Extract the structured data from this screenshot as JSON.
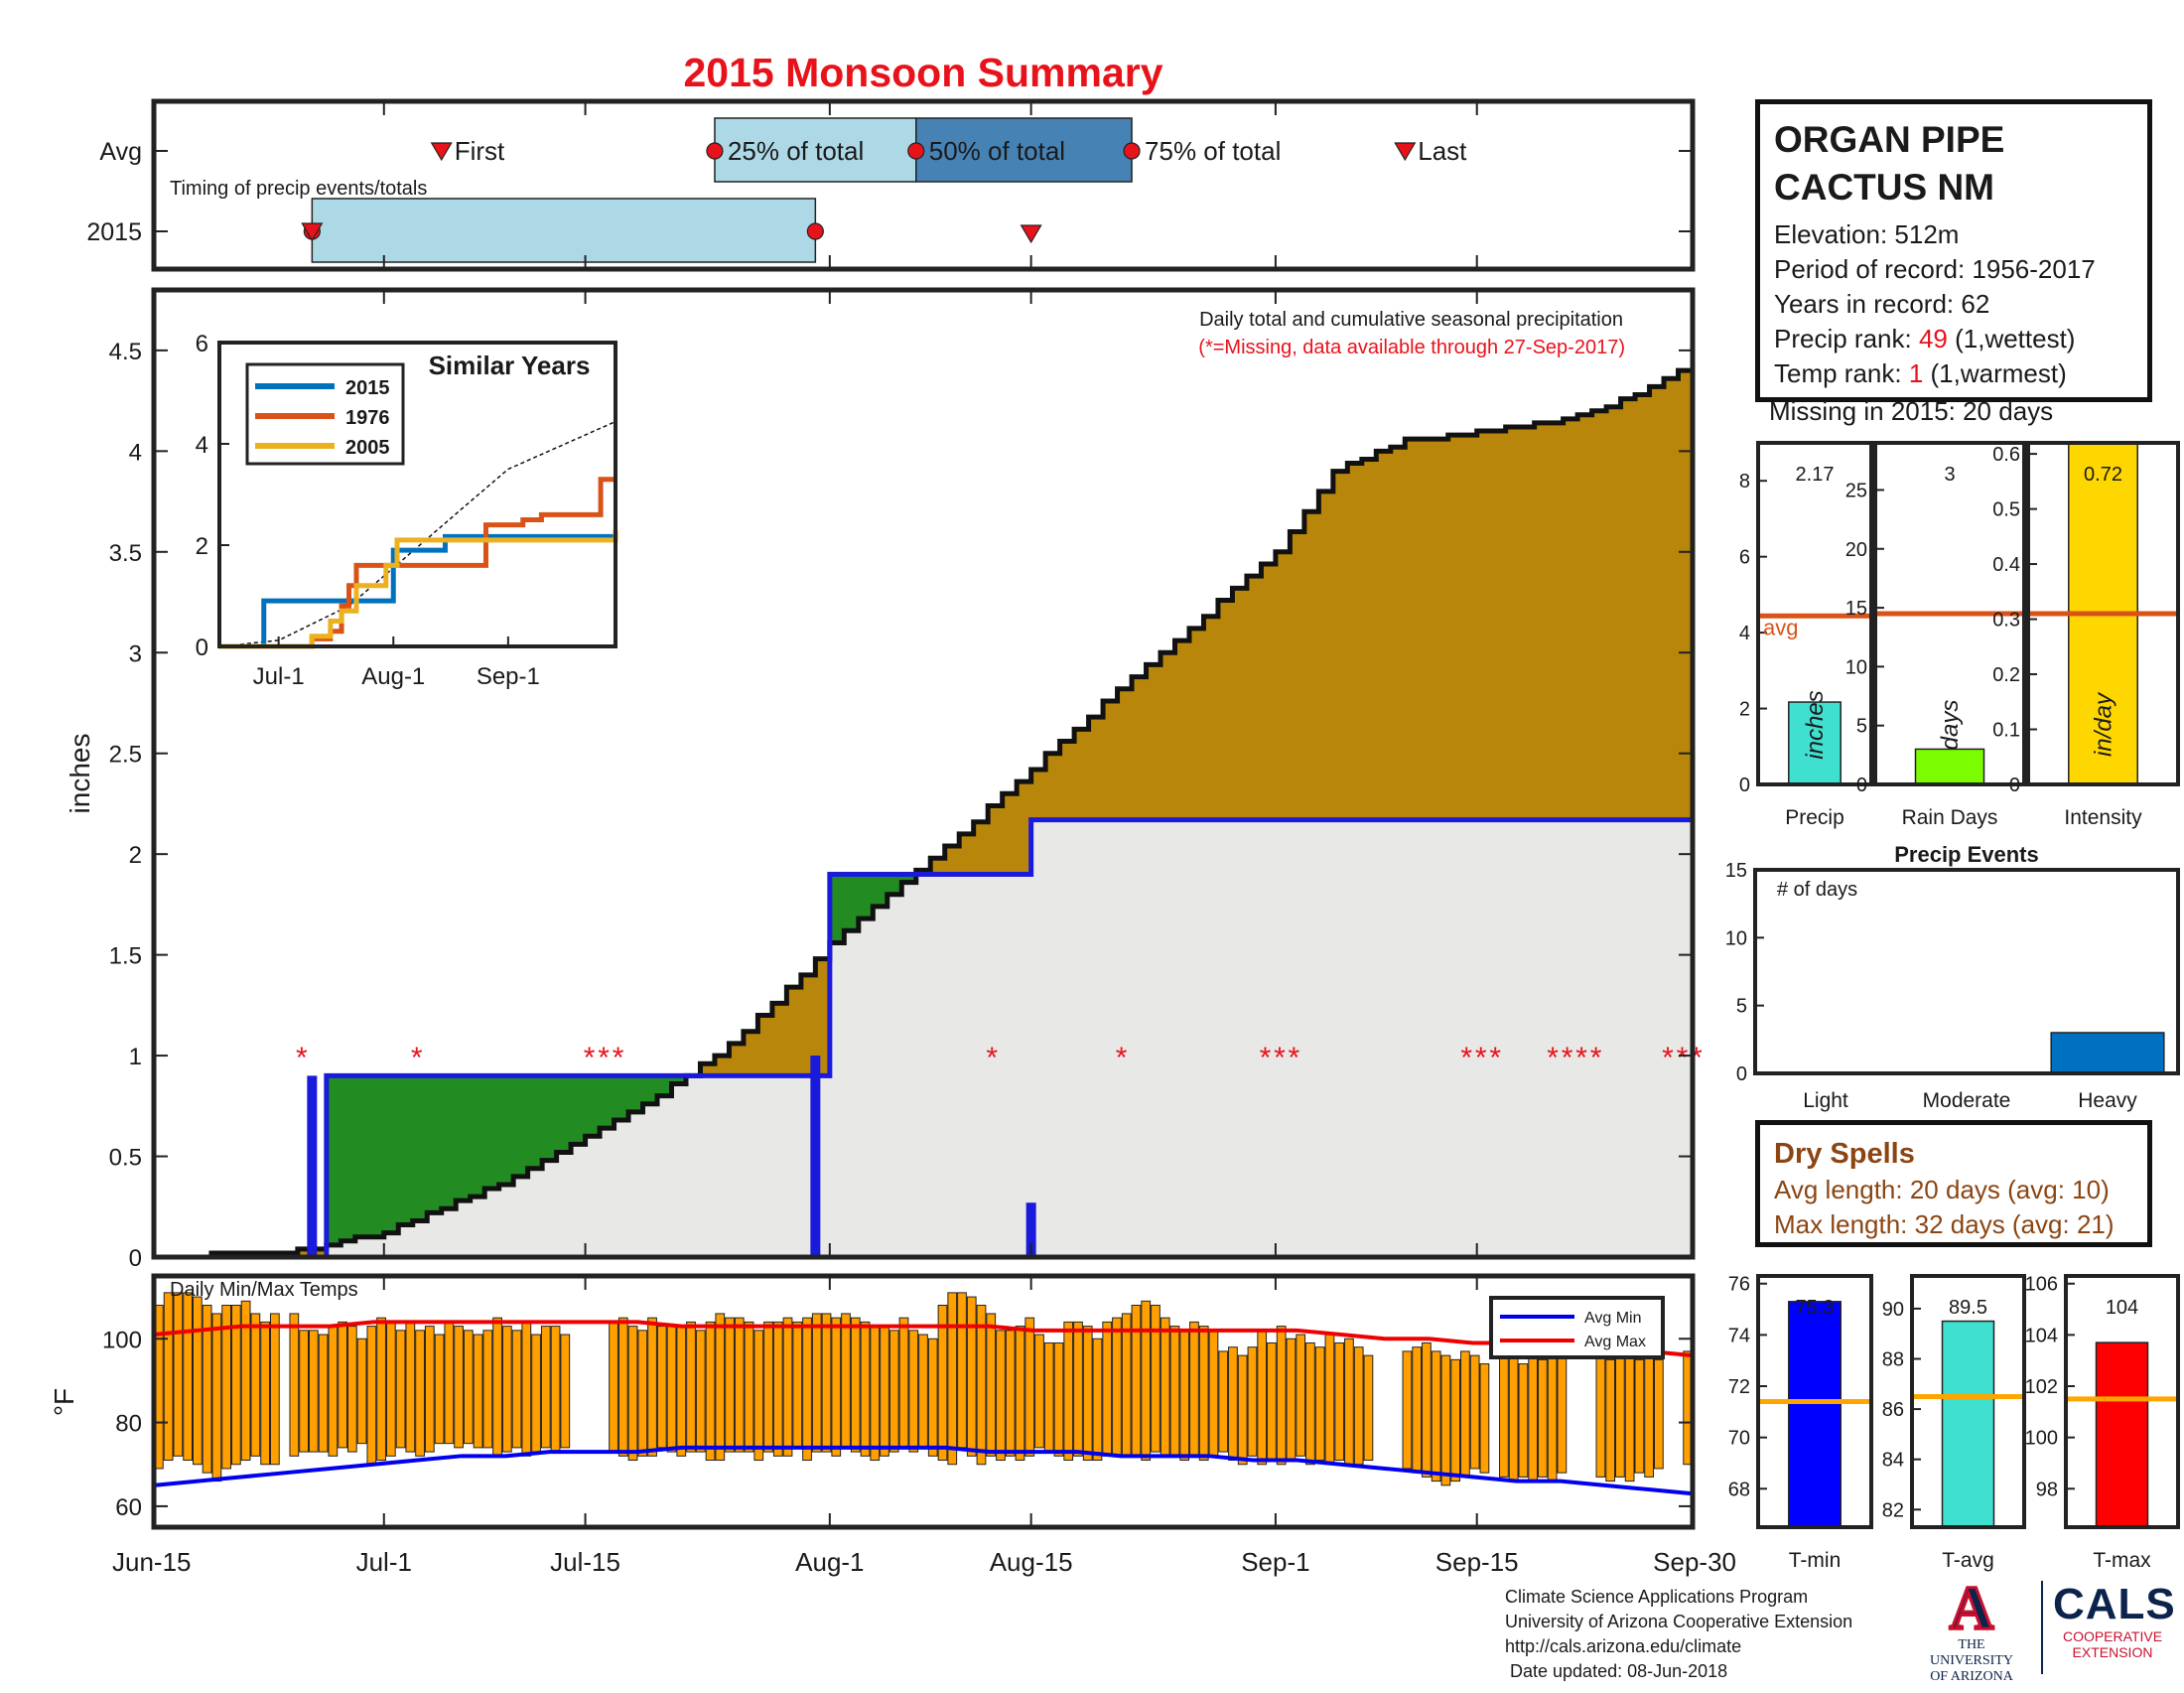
{
  "title": "2015 Monsoon Summary",
  "station": {
    "name_line1": "ORGAN PIPE",
    "name_line2": "CACTUS NM",
    "elevation": "Elevation: 512m",
    "period": "Period of record: 1956-2017",
    "years": "Years in record: 62",
    "precip_rank_label": "Precip rank: ",
    "precip_rank_value": "49",
    "precip_rank_note": " (1,wettest)",
    "temp_rank_label": "Temp rank: ",
    "temp_rank_value": "1",
    "temp_rank_note": " (1,warmest)",
    "missing": "Missing in 2015: 20 days"
  },
  "dry_spells": {
    "title": "Dry Spells",
    "avg": "Avg length: 20 days (avg: 10)",
    "max": "Max length: 32 days (avg: 21)"
  },
  "credits": {
    "line1": "Climate Science Applications Program",
    "line2": "University of Arizona Cooperative Extension",
    "line3": "http://cals.arizona.edu/climate",
    "line4": " Date updated: 08-Jun-2018"
  },
  "logos": {
    "ua_letter": "A",
    "ua_line1": "THE UNIVERSITY",
    "ua_line2": "OF ARIZONA",
    "cals": "CALS",
    "cals_sub1": "COOPERATIVE",
    "cals_sub2": "EXTENSION"
  },
  "colors": {
    "red": "#e8121b",
    "blue": "#1a1adc",
    "brown": "#b8860b",
    "green": "#228b22",
    "gray": "#e8e8e6",
    "orange": "#ff9f00",
    "light_blue": "#add8e6",
    "steel_blue": "#4682b4"
  },
  "chart_data": [
    {
      "id": "timing",
      "type": "timing",
      "title": "Timing of precip events/totals",
      "rows": [
        "Avg",
        "2015"
      ],
      "avg": {
        "first": "2015-07-05",
        "p25": "2015-07-24",
        "p50": "2015-08-07",
        "p75": "2015-08-22",
        "last": "2015-09-10",
        "labels": [
          "First",
          "25% of total",
          "50% of total",
          "75% of total",
          "Last"
        ]
      },
      "year": {
        "first": "2015-06-26",
        "p25": "2015-06-26",
        "p50": "2015-07-31",
        "p75": "2015-07-31",
        "last": "2015-08-15"
      }
    },
    {
      "id": "main",
      "type": "area",
      "ylabel": "inches",
      "ylim": [
        0,
        4.8
      ],
      "yticks": [
        0,
        0.5,
        1,
        1.5,
        2,
        2.5,
        3,
        3.5,
        4,
        4.5
      ],
      "xlim": [
        "2015-06-15",
        "2015-09-30"
      ],
      "xticks": [
        "Jun-15",
        "Jul-1",
        "Jul-15",
        "Aug-1",
        "Aug-15",
        "Sep-1",
        "Sep-15",
        "Sep-30"
      ],
      "annotation1": "Daily total and cumulative seasonal precipitation",
      "annotation2": "(*=Missing, data available through 27-Sep-2017)",
      "avg_cumulative": [
        [
          "2015-06-15",
          0
        ],
        [
          "2015-06-25",
          0.03
        ],
        [
          "2015-07-01",
          0.12
        ],
        [
          "2015-07-10",
          0.4
        ],
        [
          "2015-07-20",
          0.8
        ],
        [
          "2015-07-25",
          1.05
        ],
        [
          "2015-08-01",
          1.55
        ],
        [
          "2015-08-10",
          2.1
        ],
        [
          "2015-08-20",
          2.75
        ],
        [
          "2015-09-01",
          3.5
        ],
        [
          "2015-09-05",
          3.9
        ],
        [
          "2015-09-10",
          4.05
        ],
        [
          "2015-09-20",
          4.14
        ],
        [
          "2015-09-25",
          4.25
        ],
        [
          "2015-09-30",
          4.44
        ]
      ],
      "year_cumulative": [
        [
          "2015-06-15",
          0
        ],
        [
          "2015-06-26",
          0
        ],
        [
          "2015-06-27",
          0.9
        ],
        [
          "2015-07-31",
          0.9
        ],
        [
          "2015-08-01",
          1.9
        ],
        [
          "2015-08-14",
          1.9
        ],
        [
          "2015-08-15",
          2.17
        ],
        [
          "2015-09-30",
          2.17
        ]
      ],
      "daily_bars": [
        {
          "date": "2015-06-26",
          "value": 0.9
        },
        {
          "date": "2015-07-31",
          "value": 1.0
        },
        {
          "date": "2015-08-15",
          "value": 0.27
        }
      ],
      "missing_dates": [
        "2015-06-25",
        "2015-07-03",
        "2015-07-15",
        "2015-07-16",
        "2015-07-17",
        "2015-08-12",
        "2015-08-21",
        "2015-08-31",
        "2015-09-01",
        "2015-09-02",
        "2015-09-14",
        "2015-09-15",
        "2015-09-16",
        "2015-09-20",
        "2015-09-21",
        "2015-09-22",
        "2015-09-23",
        "2015-09-28",
        "2015-09-29",
        "2015-09-30"
      ]
    },
    {
      "id": "similar",
      "type": "line",
      "title": "Similar Years",
      "ylim": [
        0,
        6
      ],
      "yticks": [
        0,
        2,
        4,
        6
      ],
      "xticks": [
        "Jul-1",
        "Aug-1",
        "Sep-1"
      ],
      "series": [
        {
          "name": "2015",
          "color": "#0072bd",
          "points": [
            [
              "2015-06-15",
              0
            ],
            [
              "2015-06-26",
              0
            ],
            [
              "2015-06-27",
              0.9
            ],
            [
              "2015-07-31",
              0.9
            ],
            [
              "2015-08-01",
              1.9
            ],
            [
              "2015-08-14",
              1.9
            ],
            [
              "2015-08-15",
              2.17
            ],
            [
              "2015-09-30",
              2.17
            ]
          ]
        },
        {
          "name": "1976",
          "color": "#d95319",
          "points": [
            [
              "2015-06-15",
              0
            ],
            [
              "2015-07-08",
              0
            ],
            [
              "2015-07-10",
              0.15
            ],
            [
              "2015-07-15",
              0.3
            ],
            [
              "2015-07-18",
              0.8
            ],
            [
              "2015-07-20",
              1.2
            ],
            [
              "2015-07-22",
              1.6
            ],
            [
              "2015-07-26",
              1.6
            ],
            [
              "2015-07-28",
              1.6
            ],
            [
              "2015-07-30",
              1.6
            ],
            [
              "2015-08-25",
              1.6
            ],
            [
              "2015-08-26",
              2.4
            ],
            [
              "2015-09-05",
              2.5
            ],
            [
              "2015-09-10",
              2.6
            ],
            [
              "2015-09-24",
              2.6
            ],
            [
              "2015-09-26",
              3.3
            ],
            [
              "2015-09-30",
              3.3
            ]
          ]
        },
        {
          "name": "2005",
          "color": "#edb120",
          "points": [
            [
              "2015-06-15",
              0
            ],
            [
              "2015-07-05",
              0
            ],
            [
              "2015-07-10",
              0.2
            ],
            [
              "2015-07-15",
              0.5
            ],
            [
              "2015-07-18",
              0.7
            ],
            [
              "2015-07-21",
              0.7
            ],
            [
              "2015-07-22",
              1.2
            ],
            [
              "2015-07-28",
              1.2
            ],
            [
              "2015-07-30",
              1.6
            ],
            [
              "2015-08-02",
              2.1
            ],
            [
              "2015-09-30",
              2.3
            ]
          ]
        }
      ],
      "average": [
        [
          "2015-06-15",
          0
        ],
        [
          "2015-07-01",
          0.12
        ],
        [
          "2015-07-20",
          0.8
        ],
        [
          "2015-08-01",
          1.55
        ],
        [
          "2015-08-20",
          2.75
        ],
        [
          "2015-09-01",
          3.5
        ],
        [
          "2015-09-30",
          4.44
        ]
      ]
    },
    {
      "id": "temps",
      "type": "bar",
      "title": "Daily Min/Max Temps",
      "ylabel": "°F",
      "ylim": [
        55,
        115
      ],
      "yticks": [
        60,
        80,
        100
      ],
      "legend": [
        "Avg Min",
        "Avg Max"
      ],
      "days": [
        [
          69,
          108
        ],
        [
          71,
          111
        ],
        [
          72,
          111
        ],
        [
          71,
          111
        ],
        [
          70,
          110
        ],
        [
          68,
          108
        ],
        [
          66,
          106
        ],
        [
          69,
          108
        ],
        [
          70,
          108
        ],
        [
          71,
          109
        ],
        [
          72,
          106
        ],
        [
          70,
          104
        ],
        [
          70,
          106
        ],
        null,
        [
          72,
          106
        ],
        [
          73,
          102
        ],
        [
          73,
          102
        ],
        [
          73,
          101
        ],
        [
          72,
          103
        ],
        [
          74,
          104
        ],
        [
          73,
          103
        ],
        [
          75,
          100
        ],
        [
          70,
          103
        ],
        [
          71,
          105
        ],
        [
          72,
          104
        ],
        [
          74,
          102
        ],
        [
          73,
          104
        ],
        [
          72,
          102
        ],
        [
          73,
          103
        ],
        [
          75,
          101
        ],
        [
          75,
          104
        ],
        [
          74,
          103
        ],
        [
          75,
          102
        ],
        [
          74,
          101
        ],
        [
          74,
          102
        ],
        [
          72,
          105
        ],
        [
          73,
          103
        ],
        [
          74,
          102
        ],
        [
          72,
          104
        ],
        [
          73,
          101
        ],
        [
          74,
          103
        ],
        [
          73,
          103
        ],
        [
          74,
          101
        ],
        null,
        null,
        null,
        null,
        [
          73,
          104
        ],
        [
          72,
          105
        ],
        [
          71,
          103
        ],
        [
          72,
          102
        ],
        [
          72,
          105
        ],
        [
          74,
          103
        ],
        [
          73,
          103
        ],
        [
          72,
          103
        ],
        [
          73,
          104
        ],
        [
          73,
          102
        ],
        [
          71,
          104
        ],
        [
          71,
          106
        ],
        [
          73,
          105
        ],
        [
          73,
          105
        ],
        [
          73,
          104
        ],
        [
          71,
          102
        ],
        [
          73,
          104
        ],
        [
          72,
          104
        ],
        [
          72,
          105
        ],
        [
          74,
          104
        ],
        [
          71,
          105
        ],
        [
          73,
          106
        ],
        [
          73,
          106
        ],
        [
          72,
          105
        ],
        [
          74,
          106
        ],
        [
          73,
          105
        ],
        [
          72,
          104
        ],
        [
          71,
          103
        ],
        [
          72,
          103
        ],
        [
          73,
          102
        ],
        [
          74,
          105
        ],
        [
          73,
          102
        ],
        [
          74,
          101
        ],
        [
          72,
          100
        ],
        [
          71,
          108
        ],
        [
          70,
          111
        ],
        [
          74,
          111
        ],
        [
          72,
          110
        ],
        [
          70,
          108
        ],
        [
          72,
          106
        ],
        [
          71,
          102
        ],
        [
          72,
          102
        ],
        [
          71,
          103
        ],
        [
          72,
          105
        ],
        [
          74,
          101
        ],
        [
          73,
          99
        ],
        [
          72,
          99
        ],
        [
          71,
          104
        ],
        [
          72,
          104
        ],
        [
          71,
          103
        ],
        [
          71,
          100
        ],
        [
          72,
          104
        ],
        [
          72,
          105
        ],
        [
          72,
          106
        ],
        [
          72,
          108
        ],
        [
          71,
          109
        ],
        [
          73,
          108
        ],
        [
          72,
          105
        ],
        [
          72,
          103
        ],
        [
          71,
          102
        ],
        [
          72,
          104
        ],
        [
          71,
          103
        ],
        [
          72,
          102
        ],
        [
          73,
          97
        ],
        [
          71,
          98
        ],
        [
          70,
          96
        ],
        [
          72,
          98
        ],
        [
          70,
          102
        ],
        [
          71,
          99
        ],
        [
          70,
          103
        ],
        [
          71,
          100
        ],
        [
          72,
          101
        ],
        [
          70,
          99
        ],
        [
          71,
          98
        ],
        [
          70,
          101
        ],
        [
          71,
          99
        ],
        [
          70,
          100
        ],
        [
          70,
          98
        ],
        [
          71,
          96
        ],
        null,
        null,
        null,
        [
          69,
          97
        ],
        [
          68,
          98
        ],
        [
          67,
          99
        ],
        [
          66,
          97
        ],
        [
          65,
          96
        ],
        [
          66,
          95
        ],
        [
          67,
          97
        ],
        [
          69,
          96
        ],
        [
          68,
          94
        ],
        null,
        [
          67,
          97
        ],
        [
          66,
          96
        ],
        [
          67,
          94
        ],
        [
          66,
          96
        ],
        [
          67,
          95
        ],
        [
          66,
          96
        ],
        [
          68,
          97
        ],
        null,
        null,
        null,
        [
          67,
          96
        ],
        [
          66,
          95
        ],
        [
          67,
          97
        ],
        [
          66,
          96
        ],
        [
          68,
          95
        ],
        [
          67,
          96
        ],
        [
          69,
          95
        ],
        null,
        null,
        [
          70,
          97
        ]
      ],
      "avg_min": [
        65,
        66,
        67,
        68,
        69,
        70,
        71,
        72,
        72,
        73,
        73,
        73,
        74,
        74,
        74,
        74,
        74,
        74,
        74,
        73,
        73,
        73,
        72,
        72,
        72,
        71,
        71,
        70,
        69,
        68,
        67,
        66,
        66,
        65,
        64,
        63
      ],
      "avg_max": [
        101,
        102,
        103,
        103,
        103,
        104,
        104,
        104,
        104,
        104,
        104,
        104,
        103,
        103,
        103,
        103,
        103,
        103,
        103,
        103,
        102,
        102,
        102,
        102,
        102,
        102,
        102,
        101,
        100,
        100,
        99,
        99,
        98,
        97,
        97,
        96
      ]
    },
    {
      "id": "summary_bars",
      "type": "bar",
      "panels": [
        {
          "label": "Precip",
          "unit": "inches",
          "value": 2.17,
          "value_label": "2.17",
          "avg": 4.44,
          "avg_label": "avg",
          "ylim": [
            0,
            9
          ],
          "yticks": [
            0,
            2,
            4,
            6,
            8
          ],
          "color": "#40e0d0"
        },
        {
          "label": "Rain Days",
          "unit": "days",
          "value": 3,
          "value_label": "3",
          "avg": 14.5,
          "ylim": [
            0,
            29
          ],
          "yticks": [
            0,
            5,
            10,
            15,
            20,
            25
          ],
          "color": "#7cfc00"
        },
        {
          "label": "Intensity",
          "unit": "in/day",
          "value": 0.72,
          "value_label": "0.72",
          "avg": 0.31,
          "ylim": [
            0,
            0.62
          ],
          "yticks": [
            0,
            0.1,
            0.2,
            0.3,
            0.4,
            0.5,
            0.6
          ],
          "color": "#ffd700"
        }
      ]
    },
    {
      "id": "events",
      "type": "bar",
      "title": "Precip Events",
      "ylabel": "# of days",
      "ylim": [
        0,
        15
      ],
      "yticks": [
        0,
        5,
        10,
        15
      ],
      "categories": [
        "Light",
        "Moderate",
        "Heavy"
      ],
      "values": [
        0,
        0,
        3
      ]
    },
    {
      "id": "temp_summary",
      "type": "bar",
      "panels": [
        {
          "label": "T-min",
          "value": 75.3,
          "value_label": "75.3",
          "avg": 71.4,
          "ylim": [
            66.5,
            76.3
          ],
          "yticks": [
            68,
            70,
            72,
            74,
            76
          ],
          "color": "#0000ff"
        },
        {
          "label": "T-avg",
          "value": 89.5,
          "value_label": "89.5",
          "avg": 86.5,
          "ylim": [
            81.3,
            91.3
          ],
          "yticks": [
            82,
            84,
            86,
            88,
            90
          ],
          "color": "#40e0d0"
        },
        {
          "label": "T-max",
          "value": 103.7,
          "value_label": "104",
          "avg": 101.5,
          "ylim": [
            96.5,
            106.3
          ],
          "yticks": [
            98,
            100,
            102,
            104,
            106
          ],
          "color": "#ff0000"
        }
      ]
    }
  ]
}
